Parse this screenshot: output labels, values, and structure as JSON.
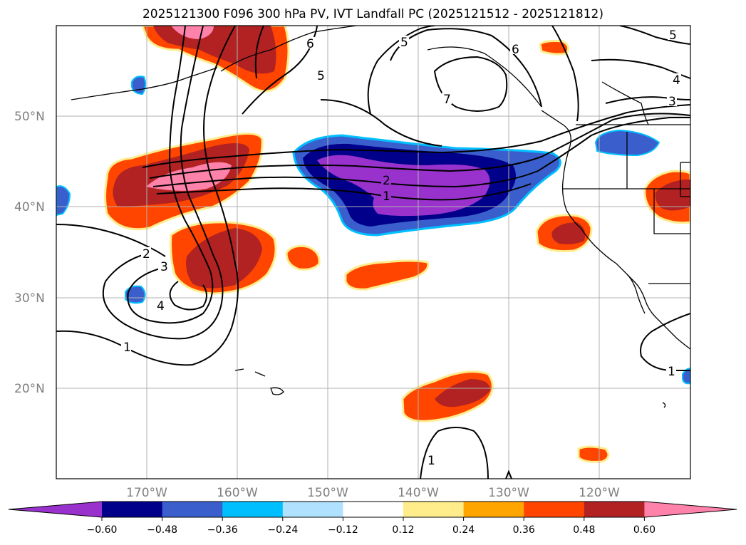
{
  "title": "2025121300 F096 300 hPa PV, IVT Landfall PC (2025121512 - 2025121812)",
  "map": {
    "lon_ticks": [
      "170°W",
      "160°W",
      "150°W",
      "140°W",
      "130°W",
      "120°W"
    ],
    "lat_ticks": [
      "50°N",
      "40°N",
      "30°N",
      "20°N"
    ],
    "lon_range": [
      -180,
      -110
    ],
    "lat_range": [
      10,
      60
    ]
  },
  "colorbar": {
    "ticks": [
      "−0.60",
      "−0.48",
      "−0.36",
      "−0.24",
      "−0.12",
      "0.12",
      "0.24",
      "0.36",
      "0.48",
      "0.60"
    ],
    "colors": [
      "#9932cc",
      "#00008b",
      "#3a5fcd",
      "#00bfff",
      "#b0e2ff",
      "#ffffff",
      "#ffec8b",
      "#ffa500",
      "#ff4500",
      "#b22222",
      "#ff82ab"
    ]
  },
  "contour_labels": [
    "1",
    "2",
    "3",
    "4",
    "5",
    "6",
    "7",
    "2",
    "1",
    "6",
    "5",
    "4",
    "3",
    "1",
    "1"
  ]
}
